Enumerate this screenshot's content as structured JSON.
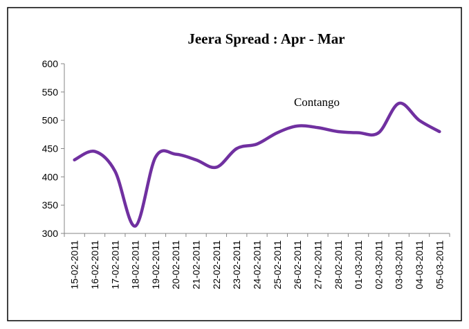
{
  "chart_data": {
    "type": "line",
    "title": "Jeera Spread : Apr - Mar",
    "annotation": "Contango",
    "categories": [
      "15-02-2011",
      "16-02-2011",
      "17-02-2011",
      "18-02-2011",
      "19-02-2011",
      "20-02-2011",
      "21-02-2011",
      "22-02-2011",
      "23-02-2011",
      "24-02-2011",
      "25-02-2011",
      "26-02-2011",
      "27-02-2011",
      "28-02-2011",
      "01-03-2011",
      "02-03-2011",
      "03-03-2011",
      "04-03-2011",
      "05-03-2011"
    ],
    "values": [
      430,
      445,
      410,
      313,
      435,
      440,
      430,
      417,
      450,
      458,
      478,
      490,
      487,
      480,
      478,
      478,
      530,
      500,
      480
    ],
    "color": "#7030a0",
    "ylim": [
      300,
      600
    ],
    "yticks": [
      300,
      350,
      400,
      450,
      500,
      550,
      600
    ],
    "smooth": true
  }
}
